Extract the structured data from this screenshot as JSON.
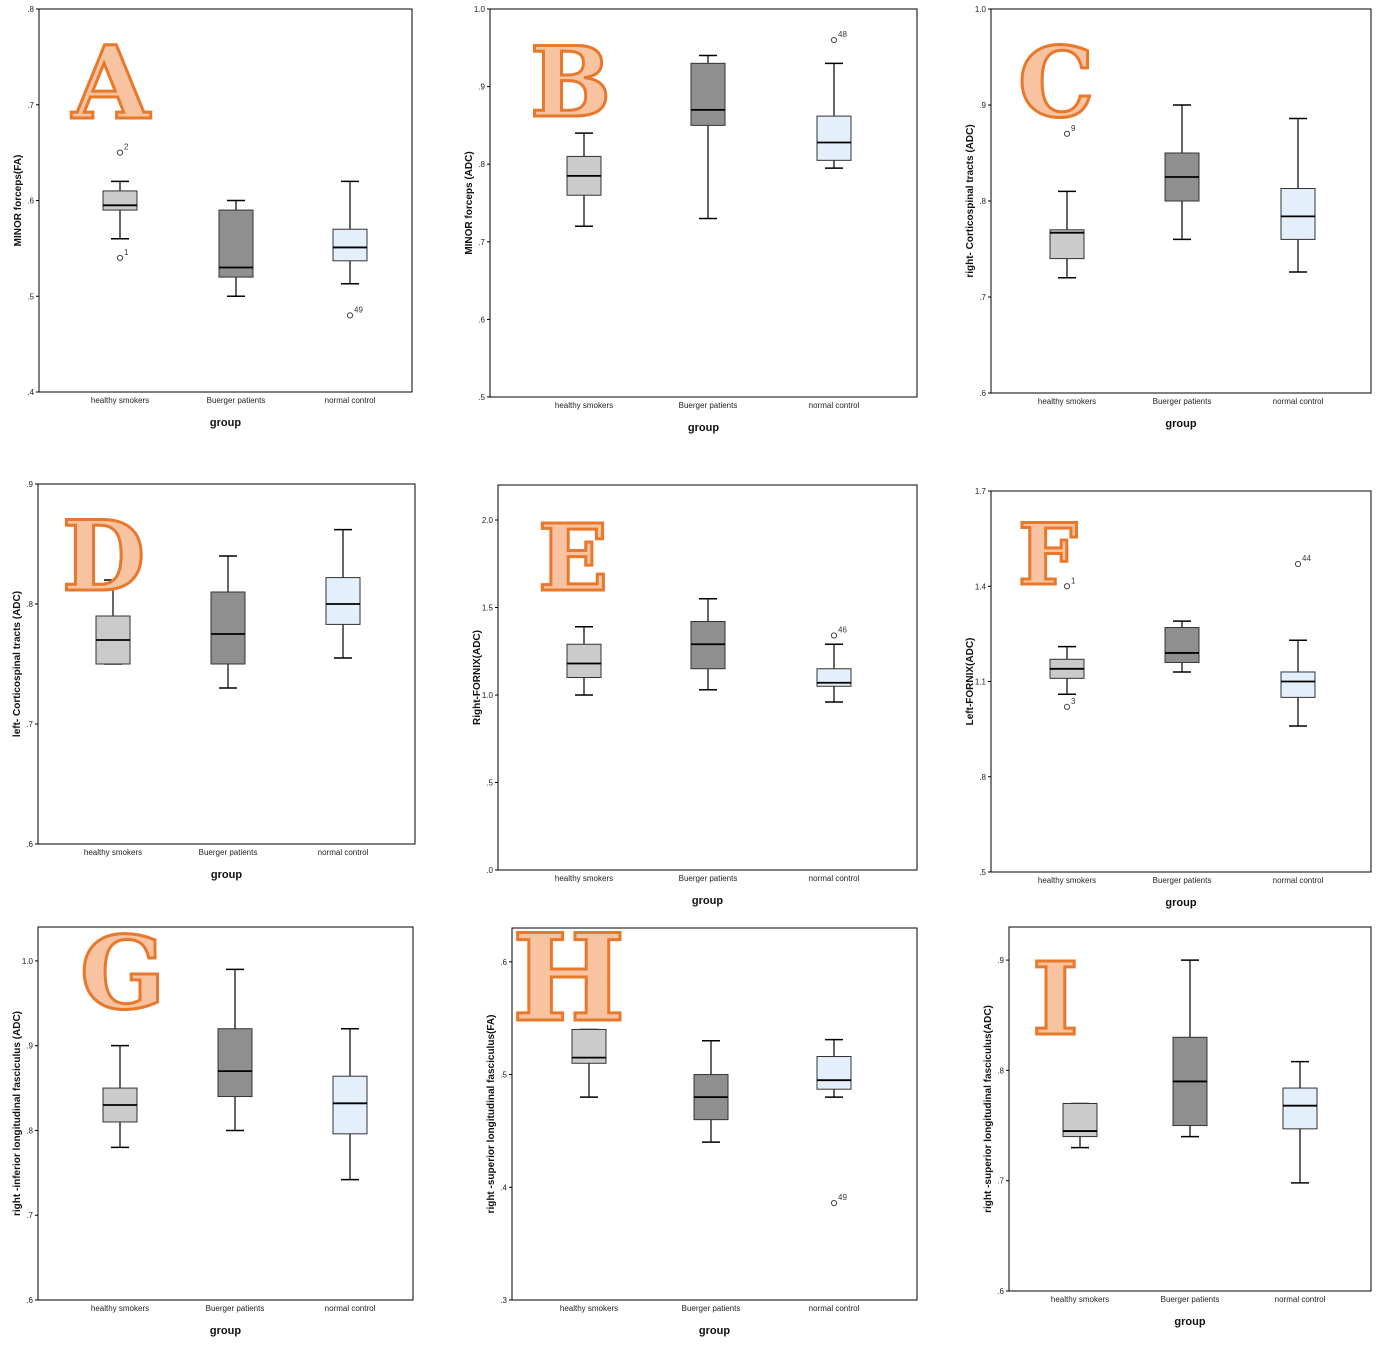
{
  "colors": {
    "healthy_smokers": "#cbcbcb",
    "buerger_patients": "#8f8f8f",
    "normal_control": "#e3effb",
    "letter_fill": "#f7c3a0",
    "letter_stroke": "#e8782c"
  },
  "chart_data": [
    {
      "type": "boxplot",
      "panel": "A",
      "ylabel": "MINOR forceps(FA)",
      "xlabel": "group",
      "ylim": [
        0.4,
        0.8
      ],
      "yticks": [
        0.4,
        0.5,
        0.6,
        0.7,
        0.8
      ],
      "yticklabels": [
        ".4",
        ".5",
        ".6",
        ".7",
        ".8"
      ],
      "categories": [
        "healthy smokers",
        "Buerger patients",
        "normal control"
      ],
      "boxes": [
        {
          "min": 0.56,
          "q1": 0.59,
          "median": 0.595,
          "q3": 0.61,
          "max": 0.62
        },
        {
          "min": 0.5,
          "q1": 0.52,
          "median": 0.53,
          "q3": 0.59,
          "max": 0.6
        },
        {
          "min": 0.513,
          "q1": 0.537,
          "median": 0.551,
          "q3": 0.57,
          "max": 0.62
        }
      ],
      "outliers": [
        {
          "group": 0,
          "value": 0.65,
          "label": "2"
        },
        {
          "group": 0,
          "value": 0.54,
          "label": "1"
        },
        {
          "group": 2,
          "value": 0.48,
          "label": "49"
        }
      ]
    },
    {
      "type": "boxplot",
      "panel": "B",
      "ylabel": "MINOR forceps (ADC)",
      "xlabel": "group",
      "ylim": [
        0.5,
        1.0
      ],
      "yticks": [
        0.5,
        0.6,
        0.7,
        0.8,
        0.9,
        1.0
      ],
      "yticklabels": [
        ".5",
        ".6",
        ".7",
        ".8",
        ".9",
        "1.0"
      ],
      "categories": [
        "healthy smokers",
        "Buerger patients",
        "normal control"
      ],
      "boxes": [
        {
          "min": 0.72,
          "q1": 0.76,
          "median": 0.785,
          "q3": 0.81,
          "max": 0.84
        },
        {
          "min": 0.73,
          "q1": 0.85,
          "median": 0.87,
          "q3": 0.93,
          "max": 0.94
        },
        {
          "min": 0.795,
          "q1": 0.805,
          "median": 0.828,
          "q3": 0.862,
          "max": 0.93
        }
      ],
      "outliers": [
        {
          "group": 2,
          "value": 0.96,
          "label": "48"
        }
      ]
    },
    {
      "type": "boxplot",
      "panel": "C",
      "ylabel": "right- Corticospinal tracts (ADC)",
      "xlabel": "group",
      "ylim": [
        0.6,
        1.0
      ],
      "yticks": [
        0.6,
        0.7,
        0.8,
        0.9,
        1.0
      ],
      "yticklabels": [
        ".6",
        ".7",
        ".8",
        ".9",
        "1.0"
      ],
      "categories": [
        "healthy smokers",
        "Buerger patients",
        "normal control"
      ],
      "boxes": [
        {
          "min": 0.72,
          "q1": 0.74,
          "median": 0.767,
          "q3": 0.77,
          "max": 0.81
        },
        {
          "min": 0.76,
          "q1": 0.8,
          "median": 0.825,
          "q3": 0.85,
          "max": 0.9
        },
        {
          "min": 0.726,
          "q1": 0.76,
          "median": 0.784,
          "q3": 0.813,
          "max": 0.886
        }
      ],
      "outliers": [
        {
          "group": 0,
          "value": 0.87,
          "label": "9"
        }
      ]
    },
    {
      "type": "boxplot",
      "panel": "D",
      "ylabel": "left- Corticospinal tracts  (ADC)",
      "xlabel": "group",
      "ylim": [
        0.6,
        0.9
      ],
      "yticks": [
        0.6,
        0.7,
        0.8,
        0.9
      ],
      "yticklabels": [
        ".6",
        ".7",
        ".8",
        ".9"
      ],
      "categories": [
        "healthy smokers",
        "Buerger patients",
        "normal control"
      ],
      "boxes": [
        {
          "min": 0.75,
          "q1": 0.75,
          "median": 0.77,
          "q3": 0.79,
          "max": 0.82
        },
        {
          "min": 0.73,
          "q1": 0.75,
          "median": 0.775,
          "q3": 0.81,
          "max": 0.84
        },
        {
          "min": 0.755,
          "q1": 0.783,
          "median": 0.8,
          "q3": 0.822,
          "max": 0.862
        }
      ],
      "outliers": []
    },
    {
      "type": "boxplot",
      "panel": "E",
      "ylabel": "Right-FORNIX(ADC)",
      "xlabel": "group",
      "ylim": [
        0.0,
        2.2
      ],
      "yticks": [
        0.0,
        0.5,
        1.0,
        1.5,
        2.0
      ],
      "yticklabels": [
        ".0",
        ".5",
        "1.0",
        "1.5",
        "2.0"
      ],
      "categories": [
        "healthy smokers",
        "Buerger patients",
        "normal control"
      ],
      "boxes": [
        {
          "min": 1.0,
          "q1": 1.1,
          "median": 1.18,
          "q3": 1.29,
          "max": 1.39
        },
        {
          "min": 1.03,
          "q1": 1.15,
          "median": 1.29,
          "q3": 1.42,
          "max": 1.55
        },
        {
          "min": 0.96,
          "q1": 1.05,
          "median": 1.07,
          "q3": 1.15,
          "max": 1.29
        }
      ],
      "outliers": [
        {
          "group": 2,
          "value": 1.34,
          "label": "46"
        }
      ]
    },
    {
      "type": "boxplot",
      "panel": "F",
      "ylabel": "Left-FORNIX(ADC)",
      "xlabel": "group",
      "ylim": [
        0.5,
        1.7
      ],
      "yticks": [
        0.5,
        0.8,
        1.1,
        1.4,
        1.7
      ],
      "yticklabels": [
        ".5",
        ".8",
        "1.1",
        "1.4",
        "1.7"
      ],
      "categories": [
        "healthy smokers",
        "Buerger patients",
        "normal control"
      ],
      "boxes": [
        {
          "min": 1.06,
          "q1": 1.11,
          "median": 1.14,
          "q3": 1.17,
          "max": 1.21
        },
        {
          "min": 1.13,
          "q1": 1.16,
          "median": 1.19,
          "q3": 1.27,
          "max": 1.29
        },
        {
          "min": 0.96,
          "q1": 1.05,
          "median": 1.1,
          "q3": 1.13,
          "max": 1.23
        }
      ],
      "outliers": [
        {
          "group": 0,
          "value": 1.4,
          "label": "1"
        },
        {
          "group": 0,
          "value": 1.02,
          "label": "3"
        },
        {
          "group": 2,
          "value": 1.47,
          "label": "44"
        }
      ]
    },
    {
      "type": "boxplot",
      "panel": "G",
      "ylabel": "right -inferior longitudinal fasciculus (ADC)",
      "xlabel": "group",
      "ylim": [
        0.6,
        1.04
      ],
      "yticks": [
        0.6,
        0.7,
        0.8,
        0.9,
        1.0
      ],
      "yticklabels": [
        ".6",
        ".7",
        ".8",
        ".9",
        "1.0"
      ],
      "categories": [
        "healthy smokers",
        "Buerger patients",
        "normal control"
      ],
      "boxes": [
        {
          "min": 0.78,
          "q1": 0.81,
          "median": 0.83,
          "q3": 0.85,
          "max": 0.9
        },
        {
          "min": 0.8,
          "q1": 0.84,
          "median": 0.87,
          "q3": 0.92,
          "max": 0.99
        },
        {
          "min": 0.742,
          "q1": 0.796,
          "median": 0.832,
          "q3": 0.864,
          "max": 0.92
        }
      ],
      "outliers": []
    },
    {
      "type": "boxplot",
      "panel": "H",
      "ylabel": "right -superior  longitudinal fasciculus(FA)",
      "xlabel": "group",
      "ylim": [
        0.3,
        0.63
      ],
      "yticks": [
        0.3,
        0.4,
        0.5,
        0.6
      ],
      "yticklabels": [
        ".3",
        ".4",
        ".5",
        ".6"
      ],
      "categories": [
        "healthy smokers",
        "Buerger patients",
        "normal control"
      ],
      "boxes": [
        {
          "min": 0.48,
          "q1": 0.51,
          "median": 0.515,
          "q3": 0.54,
          "max": 0.54
        },
        {
          "min": 0.44,
          "q1": 0.46,
          "median": 0.48,
          "q3": 0.5,
          "max": 0.53
        },
        {
          "min": 0.48,
          "q1": 0.487,
          "median": 0.495,
          "q3": 0.516,
          "max": 0.531
        }
      ],
      "outliers": [
        {
          "group": 2,
          "value": 0.386,
          "label": "49"
        }
      ]
    },
    {
      "type": "boxplot",
      "panel": "I",
      "ylabel": "right -superior  longitudinal fasciculus(ADC)",
      "xlabel": "group",
      "ylim": [
        0.6,
        0.93
      ],
      "yticks": [
        0.6,
        0.7,
        0.8,
        0.9
      ],
      "yticklabels": [
        ".6",
        ".7",
        ".8",
        ".9"
      ],
      "categories": [
        "healthy smokers",
        "Buerger patients",
        "normal control"
      ],
      "boxes": [
        {
          "min": 0.73,
          "q1": 0.74,
          "median": 0.745,
          "q3": 0.77,
          "max": 0.77
        },
        {
          "min": 0.74,
          "q1": 0.75,
          "median": 0.79,
          "q3": 0.83,
          "max": 0.9
        },
        {
          "min": 0.698,
          "q1": 0.747,
          "median": 0.768,
          "q3": 0.784,
          "max": 0.808
        }
      ],
      "outliers": []
    }
  ]
}
